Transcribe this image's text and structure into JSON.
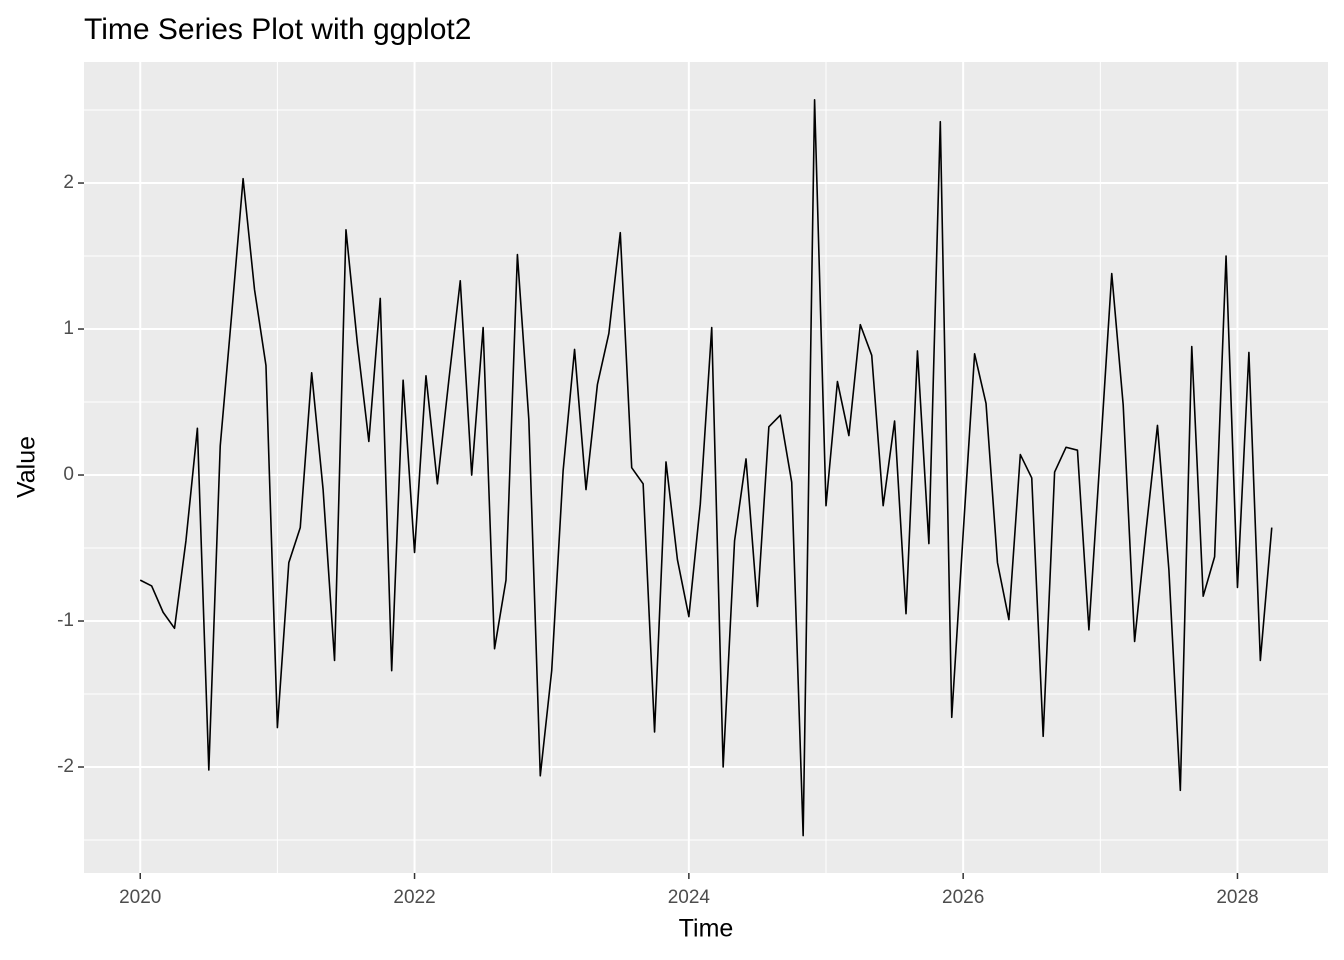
{
  "chart_data": {
    "type": "line",
    "title": "Time Series Plot with ggplot2",
    "x_label": "Time",
    "y_label": "Value",
    "x": [
      2020,
      2020.0833,
      2020.1667,
      2020.25,
      2020.3333,
      2020.4167,
      2020.5,
      2020.5833,
      2020.6667,
      2020.75,
      2020.8333,
      2020.9167,
      2021,
      2021.0833,
      2021.1667,
      2021.25,
      2021.3333,
      2021.4167,
      2021.5,
      2021.5833,
      2021.6667,
      2021.75,
      2021.8333,
      2021.9167,
      2022,
      2022.0833,
      2022.1667,
      2022.25,
      2022.3333,
      2022.4167,
      2022.5,
      2022.5833,
      2022.6667,
      2022.75,
      2022.8333,
      2022.9167,
      2023,
      2023.0833,
      2023.1667,
      2023.25,
      2023.3333,
      2023.4167,
      2023.5,
      2023.5833,
      2023.6667,
      2023.75,
      2023.8333,
      2023.9167,
      2024,
      2024.0833,
      2024.1667,
      2024.25,
      2024.3333,
      2024.4167,
      2024.5,
      2024.5833,
      2024.6667,
      2024.75,
      2024.8333,
      2024.9167,
      2025,
      2025.0833,
      2025.1667,
      2025.25,
      2025.3333,
      2025.4167,
      2025.5,
      2025.5833,
      2025.6667,
      2025.75,
      2025.8333,
      2025.9167,
      2026,
      2026.0833,
      2026.1667,
      2026.25,
      2026.3333,
      2026.4167,
      2026.5,
      2026.5833,
      2026.6667,
      2026.75,
      2026.8333,
      2026.9167,
      2027,
      2027.0833,
      2027.1667,
      2027.25,
      2027.3333,
      2027.4167,
      2027.5,
      2027.5833,
      2027.6667,
      2027.75,
      2027.8333,
      2027.9167,
      2028,
      2028.0833,
      2028.1667,
      2028.25
    ],
    "series": [
      {
        "color": "#000000",
        "values": [
          -0.72,
          -0.76,
          -0.94,
          -1.05,
          -0.45,
          0.32,
          -2.02,
          0.2,
          1.1,
          2.03,
          1.27,
          0.75,
          -1.73,
          -0.6,
          -0.36,
          0.7,
          -0.1,
          -1.27,
          1.68,
          0.9,
          0.23,
          1.21,
          -1.34,
          0.65,
          -0.53,
          0.68,
          -0.06,
          0.65,
          1.33,
          0.0,
          1.01,
          -1.19,
          -0.72,
          1.51,
          0.38,
          -2.06,
          -1.34,
          0.03,
          0.86,
          -0.1,
          0.62,
          0.97,
          1.66,
          0.05,
          -0.06,
          -1.76,
          0.09,
          -0.58,
          -0.97,
          -0.2,
          1.01,
          -2.0,
          -0.45,
          0.11,
          -0.9,
          0.33,
          0.41,
          -0.05,
          -2.47,
          2.57,
          -0.21,
          0.64,
          0.27,
          1.03,
          0.82,
          -0.21,
          0.37,
          -0.95,
          0.85,
          -0.47,
          2.42,
          -1.66,
          -0.4,
          0.83,
          0.49,
          -0.6,
          -0.99,
          0.14,
          -0.02,
          -1.79,
          0.02,
          0.19,
          0.17,
          -1.06,
          0.15,
          1.38,
          0.48,
          -1.14,
          -0.38,
          0.34,
          -0.65,
          -2.16,
          0.88,
          -0.83,
          -0.56,
          1.5,
          -0.77,
          0.84,
          -1.27,
          -0.36
        ]
      }
    ],
    "xlim": [
      2019.59,
      2028.66
    ],
    "xticks": [
      2020,
      2022,
      2024,
      2026,
      2028
    ],
    "ylim": [
      -2.726,
      2.829
    ],
    "yticks": [
      -2,
      -1,
      0,
      1,
      2
    ],
    "grid": true
  }
}
